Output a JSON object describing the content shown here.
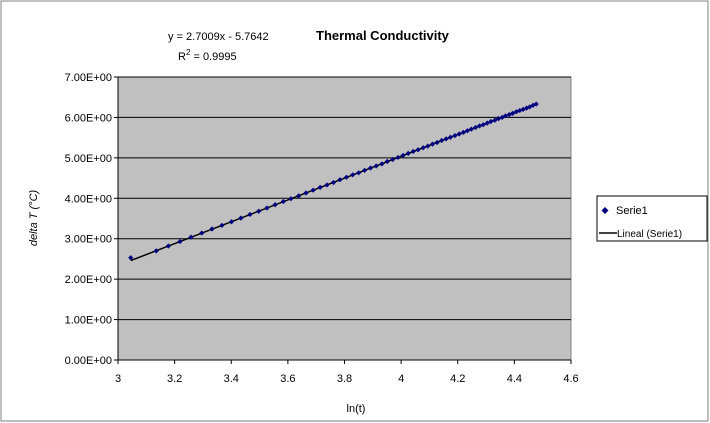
{
  "chart_data": {
    "type": "scatter",
    "title": "Thermal Conductivity",
    "equation": "y = 2.7009x - 5.7642",
    "r2_prefix": "R",
    "r2_exp": "2",
    "r2_value": " = 0.9995",
    "xlabel": "ln(t)",
    "ylabel": "delta T (°C)",
    "xlim": [
      3,
      4.6
    ],
    "ylim": [
      0,
      7
    ],
    "xticks": [
      3,
      3.2,
      3.4,
      3.6,
      3.8,
      4,
      4.2,
      4.4,
      4.6
    ],
    "xtick_labels": [
      "3",
      "3.2",
      "3.4",
      "3.6",
      "3.8",
      "4",
      "4.2",
      "4.4",
      "4.6"
    ],
    "yticks": [
      0,
      1,
      2,
      3,
      4,
      5,
      6,
      7
    ],
    "ytick_labels": [
      "0.00E+00",
      "1.00E+00",
      "2.00E+00",
      "3.00E+00",
      "4.00E+00",
      "5.00E+00",
      "6.00E+00",
      "7.00E+00"
    ],
    "grid": true,
    "legend_position": "right",
    "colors": {
      "plot_bg": "#c0c0c0",
      "marker": "#000080",
      "trendline": "#000000",
      "gridline": "#000000"
    },
    "series": [
      {
        "name": "Serie1",
        "marker": "diamond",
        "x": [
          3.045,
          3.135,
          3.178,
          3.219,
          3.258,
          3.296,
          3.332,
          3.367,
          3.401,
          3.434,
          3.466,
          3.497,
          3.526,
          3.555,
          3.584,
          3.611,
          3.638,
          3.664,
          3.689,
          3.714,
          3.738,
          3.761,
          3.784,
          3.807,
          3.829,
          3.85,
          3.871,
          3.892,
          3.912,
          3.932,
          3.951,
          3.97,
          3.989,
          4.007,
          4.025,
          4.043,
          4.06,
          4.078,
          4.094,
          4.111,
          4.127,
          4.143,
          4.159,
          4.174,
          4.19,
          4.205,
          4.22,
          4.234,
          4.248,
          4.263,
          4.277,
          4.29,
          4.304,
          4.317,
          4.331,
          4.344,
          4.357,
          4.369,
          4.382,
          4.394,
          4.407,
          4.419,
          4.431,
          4.443,
          4.454,
          4.466,
          4.477
        ],
        "y": [
          2.53,
          2.7,
          2.82,
          2.93,
          3.04,
          3.14,
          3.24,
          3.33,
          3.42,
          3.51,
          3.6,
          3.68,
          3.76,
          3.84,
          3.92,
          3.99,
          4.06,
          4.13,
          4.2,
          4.27,
          4.33,
          4.39,
          4.46,
          4.52,
          4.58,
          4.63,
          4.69,
          4.75,
          4.8,
          4.85,
          4.91,
          4.96,
          5.01,
          5.06,
          5.11,
          5.16,
          5.2,
          5.25,
          5.29,
          5.34,
          5.38,
          5.43,
          5.47,
          5.51,
          5.55,
          5.59,
          5.63,
          5.67,
          5.71,
          5.75,
          5.79,
          5.82,
          5.86,
          5.9,
          5.93,
          5.97,
          6.0,
          6.04,
          6.07,
          6.1,
          6.14,
          6.17,
          6.2,
          6.23,
          6.26,
          6.3,
          6.33
        ]
      },
      {
        "name": "Lineal (Serie1)",
        "type": "trendline",
        "slope": 2.7009,
        "intercept": -5.7642,
        "x_range": [
          3.045,
          4.477
        ]
      }
    ]
  }
}
